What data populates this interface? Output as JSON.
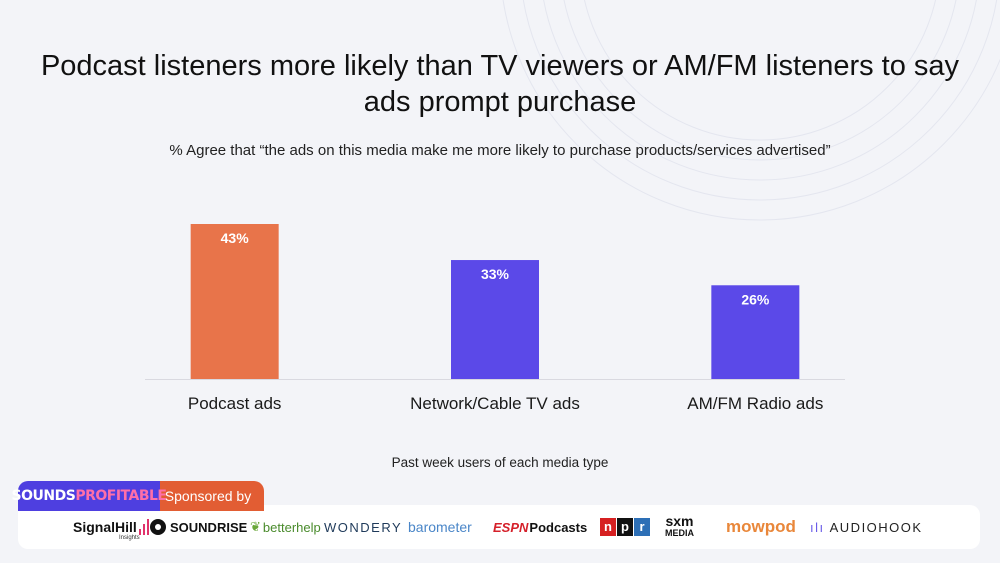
{
  "page": {
    "title": "Podcast listeners more likely than TV viewers or AM/FM listeners to say ads prompt purchase",
    "subtitle": "% Agree that “the ads on this media make me more likely to purchase products/services advertised”"
  },
  "chart_data": {
    "type": "bar",
    "title": "Podcast listeners more likely than TV viewers or AM/FM listeners to say ads prompt purchase",
    "subtitle": "% Agree that “the ads on this media make me more likely to purchase products/services advertised”",
    "categories": [
      "Podcast ads",
      "Network/Cable TV ads",
      "AM/FM Radio ads"
    ],
    "values": [
      43,
      33,
      26
    ],
    "data_labels": [
      "43%",
      "33%",
      "26%"
    ],
    "bar_colors": [
      "#e8744a",
      "#5b49e8",
      "#5b49e8"
    ],
    "xlabel": "Past week users of each media type",
    "ylabel": "",
    "ylim": [
      0,
      43
    ],
    "grid": false,
    "legend": "none"
  },
  "footer": {
    "brand_part1": "SOUNDS",
    "brand_part2": "PROFITABLE",
    "sponsored_label": "Sponsored by",
    "sponsors": {
      "signalhill": "SignalHill",
      "signalhill_sub": "Insights",
      "soundrise": "SOUNDRISE",
      "betterhelp": "betterhelp",
      "wondery": "WONDERY",
      "barometer": "barometer",
      "espn_brand": "ESPN",
      "espn_word": "Podcasts",
      "npr_letters": [
        "n",
        "p",
        "r"
      ],
      "sxm_top": "sxm",
      "sxm_bottom": "MEDIA",
      "mowpod": "mowpod",
      "audiohook": "AUDIOHOOK"
    }
  },
  "colors": {
    "podcast": "#e8744a",
    "other": "#5b49e8",
    "baseline": "#d9d9e0",
    "brand_purple": "#4e3fe0",
    "sponsor_orange": "#e25d33",
    "npr_red": "#d62021",
    "npr_black": "#111111",
    "npr_blue": "#2d6fb6"
  }
}
